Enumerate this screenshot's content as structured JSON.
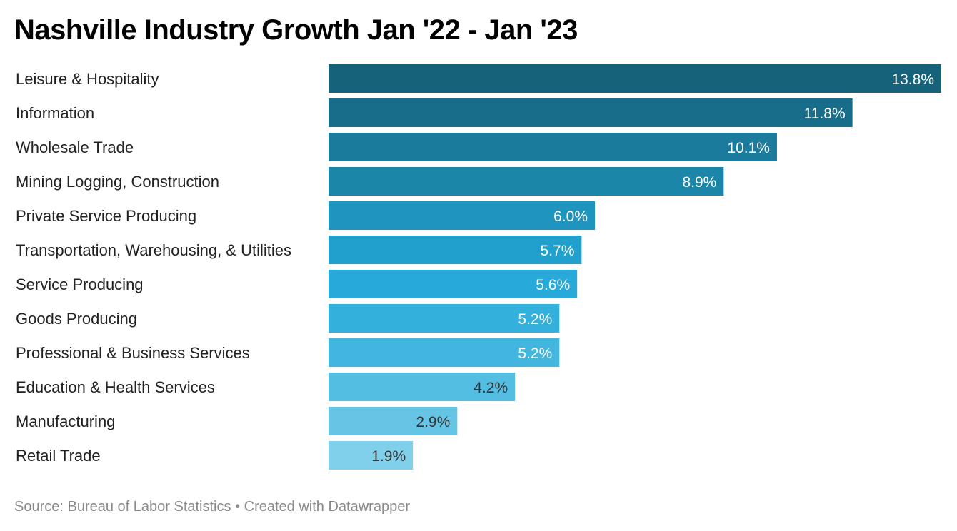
{
  "title": "Nashville Industry Growth Jan '22 - Jan '23",
  "footer": {
    "source": "Source: Bureau of Labor Statistics",
    "separator": "•",
    "credit": "Created with Datawrapper"
  },
  "chart_data": {
    "type": "bar",
    "orientation": "horizontal",
    "title": "Nashville Industry Growth Jan '22 - Jan '23",
    "xlabel": "",
    "ylabel": "",
    "unit": "%",
    "xlim": [
      0,
      13.8
    ],
    "grid": false,
    "categories": [
      "Leisure & Hospitality",
      "Information",
      "Wholesale Trade",
      "Mining Logging, Construction",
      "Private Service Producing",
      "Transportation, Warehousing, & Utilities",
      "Service Producing",
      "Goods Producing",
      "Professional & Business Services",
      "Education & Health Services",
      "Manufacturing",
      "Retail Trade"
    ],
    "values": [
      13.8,
      11.8,
      10.1,
      8.9,
      6.0,
      5.7,
      5.6,
      5.2,
      5.2,
      4.2,
      2.9,
      1.9
    ],
    "value_labels": [
      "13.8%",
      "11.8%",
      "10.1%",
      "8.9%",
      "6.0%",
      "5.7%",
      "5.6%",
      "5.2%",
      "5.2%",
      "4.2%",
      "2.9%",
      "1.9%"
    ],
    "bar_colors": [
      "#17627b",
      "#186d8b",
      "#1b7b9c",
      "#1c86a8",
      "#1f94bf",
      "#21a0cd",
      "#27aad9",
      "#33b0dc",
      "#43b6e0",
      "#54bde2",
      "#66c5e5",
      "#80cfeb"
    ],
    "label_colors": [
      "#ffffff",
      "#ffffff",
      "#ffffff",
      "#ffffff",
      "#ffffff",
      "#ffffff",
      "#ffffff",
      "#ffffff",
      "#ffffff",
      "#333333",
      "#333333",
      "#333333"
    ],
    "source": "Bureau of Labor Statistics"
  }
}
